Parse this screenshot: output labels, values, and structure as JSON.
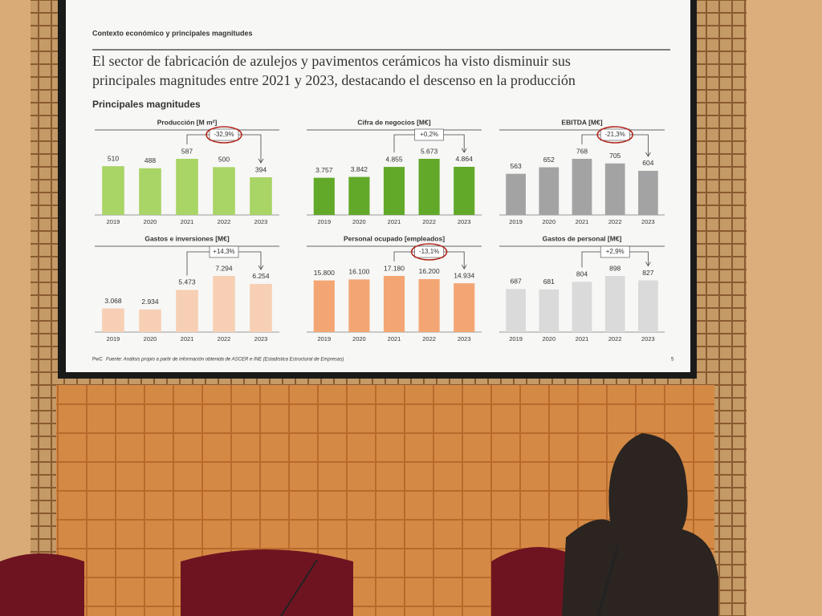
{
  "header": "Contexto económico y principales magnitudes",
  "slide_title": [
    "El sector de fabricación de azulejos y pavimentos cerámicos ha visto disminuir sus",
    "principales magnitudes entre 2021 y 2023, destacando el descenso en la producción"
  ],
  "section": "Principales magnitudes",
  "footer": {
    "brand": "PwC",
    "source": "Fuente: Análisis propio a partir de información obtenida de ASCER e INE (Estadística Estructural de Empresas)",
    "page": "5"
  },
  "chart_data": [
    {
      "type": "bar",
      "title": "Producción [M m²]",
      "categories": [
        "2019",
        "2020",
        "2021",
        "2022",
        "2023"
      ],
      "values": [
        510,
        488,
        587,
        500,
        394
      ],
      "color": "#a9d466",
      "annotation": "-32,9%",
      "annotation_circled": true
    },
    {
      "type": "bar",
      "title": "Cifra de negocios [M€]",
      "categories": [
        "2019",
        "2020",
        "2021",
        "2022",
        "2023"
      ],
      "values": [
        3757,
        3842,
        4855,
        5673,
        4864
      ],
      "value_labels": [
        "3.757",
        "3.842",
        "4.855",
        "5.673",
        "4.864"
      ],
      "color": "#62a92a",
      "annotation": "+0,2%",
      "annotation_circled": false
    },
    {
      "type": "bar",
      "title": "EBITDA [M€]",
      "categories": [
        "2019",
        "2020",
        "2021",
        "2022",
        "2023"
      ],
      "values": [
        563,
        652,
        768,
        705,
        604
      ],
      "color": "#a3a3a3",
      "annotation": "-21,3%",
      "annotation_circled": true
    },
    {
      "type": "bar",
      "title": "Gastos e inversiones [M€]",
      "categories": [
        "2019",
        "2020",
        "2021",
        "2022",
        "2023"
      ],
      "values": [
        3068,
        2934,
        5473,
        7294,
        6254
      ],
      "value_labels": [
        "3.068",
        "2.934",
        "5.473",
        "7.294",
        "6.254"
      ],
      "color": "#f7cfb4",
      "annotation": "+14,3%",
      "annotation_circled": false
    },
    {
      "type": "bar",
      "title": "Personal ocupado [empleados]",
      "categories": [
        "2019",
        "2020",
        "2021",
        "2022",
        "2023"
      ],
      "values": [
        15800,
        16100,
        17180,
        16200,
        14934
      ],
      "value_labels": [
        "15.800",
        "16.100",
        "17.180",
        "16.200",
        "14.934"
      ],
      "color": "#f3a674",
      "annotation": "-13,1%",
      "annotation_circled": true
    },
    {
      "type": "bar",
      "title": "Gastos de personal [M€]",
      "categories": [
        "2019",
        "2020",
        "2021",
        "2022",
        "2023"
      ],
      "values": [
        687,
        681,
        804,
        898,
        827
      ],
      "color": "#dadada",
      "annotation": "+2,9%",
      "annotation_circled": false
    }
  ]
}
